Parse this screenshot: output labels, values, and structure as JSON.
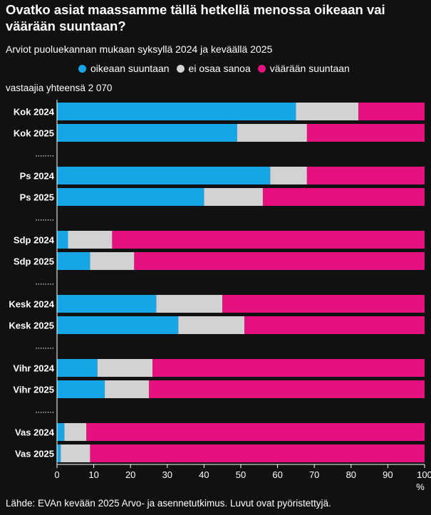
{
  "title": "Ovatko asiat maassamme tällä hetkellä menossa oikeaan vai väärään suuntaan?",
  "subtitle": "Arviot puoluekannan mukaan syksyllä 2024 ja keväällä 2025",
  "respondents": "vastaajia yhteensä 2 070",
  "source": "Lähde: EVAn kevään 2025 Arvo- ja asennetutkimus. Luvut ovat pyöristettyjä.",
  "legend": [
    {
      "label": "oikeaan suuntaan",
      "color": "#16a6e6"
    },
    {
      "label": "ei osaa sanoa",
      "color": "#d2d2d2"
    },
    {
      "label": "väärään suuntaan",
      "color": "#e5117f"
    }
  ],
  "chart_data": {
    "type": "bar",
    "orientation": "horizontal",
    "stacked": true,
    "categories": [
      "Kok 2024",
      "Kok 2025",
      "Ps 2024",
      "Ps 2025",
      "Sdp 2024",
      "Sdp 2025",
      "Kesk 2024",
      "Kesk 2025",
      "Vihr 2024",
      "Vihr 2025",
      "Vas 2024",
      "Vas 2025"
    ],
    "separator_label": "........",
    "series": [
      {
        "name": "oikeaan suuntaan",
        "color": "#16a6e6",
        "values": [
          65,
          49,
          58,
          40,
          3,
          9,
          27,
          33,
          11,
          13,
          2,
          1
        ]
      },
      {
        "name": "ei osaa sanoa",
        "color": "#d2d2d2",
        "values": [
          17,
          19,
          10,
          16,
          12,
          12,
          18,
          18,
          15,
          12,
          6,
          8
        ]
      },
      {
        "name": "väärään suuntaan",
        "color": "#e5117f",
        "values": [
          18,
          32,
          32,
          44,
          85,
          79,
          55,
          49,
          74,
          75,
          92,
          91
        ]
      }
    ],
    "xlabel": "%",
    "xlim": [
      0,
      100
    ],
    "xticks": [
      0,
      10,
      20,
      30,
      40,
      50,
      60,
      70,
      80,
      90,
      100
    ],
    "grid": false
  }
}
